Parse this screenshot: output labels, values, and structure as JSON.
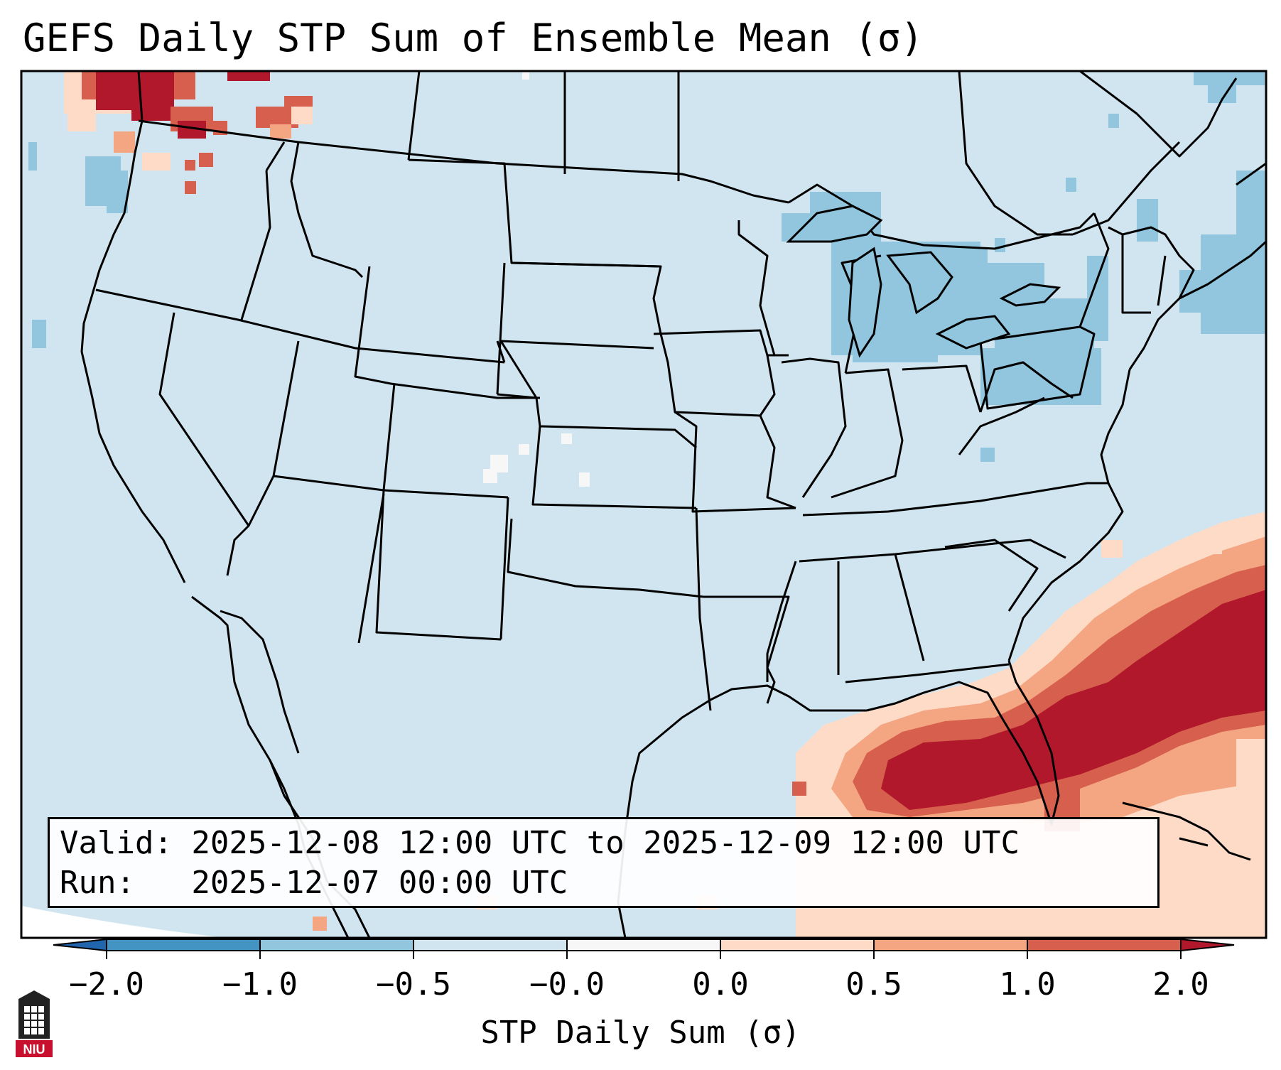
{
  "title": "GEFS Daily STP Sum of Ensemble Mean (σ)",
  "info": {
    "valid_line": "Valid: 2025-12-08 12:00 UTC to 2025-12-09 12:00 UTC",
    "run_line": "Run:   2025-12-07 00:00 UTC"
  },
  "colorbar": {
    "label": "STP Daily Sum (σ)",
    "ticks": [
      "−2.0",
      "−1.0",
      "−0.5",
      "−0.0",
      "0.0",
      "0.5",
      "1.0",
      "2.0"
    ],
    "colors": [
      "#4393c3",
      "#92c5de",
      "#d1e5f0",
      "#f7f7f7",
      "#fddbc7",
      "#f4a582",
      "#d6604d",
      "#b2182b"
    ],
    "under_color": "#2166ac",
    "over_color": "#67001f"
  },
  "map": {
    "background_color": "#d1e5f0",
    "region": "Contiguous United States"
  },
  "logo": {
    "text": "NIU",
    "icon": "niu-logo-icon"
  }
}
